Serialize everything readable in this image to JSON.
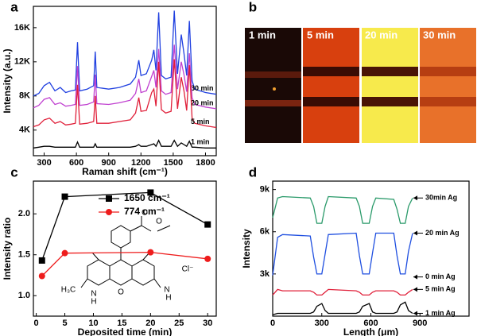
{
  "chart_data": [
    {
      "type": "line",
      "title": "a",
      "x_label": "Raman shift (cm⁻¹)",
      "y_label": "Intensity (a.u.)",
      "x": [
        200,
        250,
        300,
        350,
        400,
        450,
        500,
        550,
        590,
        610,
        630,
        700,
        760,
        775,
        790,
        900,
        1000,
        1100,
        1150,
        1180,
        1200,
        1250,
        1300,
        1320,
        1340,
        1365,
        1390,
        1430,
        1480,
        1510,
        1540,
        1575,
        1600,
        1625,
        1650,
        1675,
        1700,
        1800,
        1900
      ],
      "series": [
        {
          "name": "30 min",
          "color": "#2040e0",
          "values": [
            8000,
            8300,
            9200,
            9600,
            8600,
            9000,
            8400,
            8600,
            8700,
            14300,
            8600,
            8800,
            9200,
            13200,
            9000,
            8800,
            9000,
            9400,
            10200,
            12200,
            10400,
            10600,
            12200,
            13400,
            11000,
            17800,
            10400,
            10000,
            10200,
            18000,
            10600,
            15200,
            13000,
            10400,
            16800,
            9800,
            8800,
            8400,
            8200
          ]
        },
        {
          "name": "20 min",
          "color": "#c040d0",
          "values": [
            6600,
            6900,
            7600,
            7800,
            7000,
            7200,
            6800,
            6900,
            7000,
            11500,
            6900,
            7000,
            7300,
            10500,
            7100,
            7000,
            7200,
            7500,
            8300,
            10000,
            8400,
            8600,
            10300,
            11000,
            9000,
            13500,
            8600,
            8200,
            8400,
            14000,
            8800,
            12000,
            10500,
            8500,
            13000,
            7800,
            7000,
            6700,
            6500
          ]
        },
        {
          "name": "5 min",
          "color": "#e0203a",
          "values": [
            4400,
            4600,
            5200,
            5400,
            4800,
            5000,
            4600,
            4700,
            4800,
            9300,
            4700,
            4800,
            5000,
            8000,
            4800,
            4800,
            5000,
            5200,
            6000,
            7800,
            6200,
            6300,
            8400,
            8800,
            6800,
            12000,
            6400,
            6000,
            6200,
            12300,
            6500,
            10200,
            8600,
            6300,
            11600,
            5400,
            4800,
            4500,
            4300
          ]
        },
        {
          "name": "1 min",
          "color": "#000000",
          "values": [
            1900,
            2000,
            2100,
            2100,
            2000,
            2000,
            2000,
            2000,
            2000,
            2600,
            2000,
            2000,
            2000,
            2400,
            2000,
            2000,
            2000,
            2000,
            2100,
            2300,
            2100,
            2100,
            2300,
            2400,
            2100,
            2800,
            2100,
            2100,
            2100,
            2800,
            2100,
            2500,
            2300,
            2100,
            2700,
            2000,
            2000,
            1900,
            1900
          ]
        }
      ],
      "xlim": [
        200,
        1900
      ],
      "xticks": [
        300,
        600,
        900,
        1200,
        1500,
        1800
      ],
      "ylim": [
        1000,
        18500
      ],
      "yticks": [
        {
          "value": 4000,
          "label": "4K"
        },
        {
          "value": 8000,
          "label": "8K"
        },
        {
          "value": 12000,
          "label": "12K"
        },
        {
          "value": 16000,
          "label": "16K"
        }
      ]
    },
    {
      "type": "image",
      "title": "b",
      "labels": [
        "1 min",
        "5 min",
        "20 min",
        "30 min"
      ]
    },
    {
      "type": "line",
      "title": "c",
      "x_label": "Deposited time (min)",
      "y_label": "Intensity ratio",
      "legend": "upper right",
      "x": [
        1,
        5,
        20,
        30
      ],
      "series": [
        {
          "name": "1650 cm⁻¹",
          "color": "#000000",
          "marker": "square",
          "values": [
            1.43,
            2.21,
            2.26,
            1.87
          ]
        },
        {
          "name": "774 cm⁻¹",
          "color": "#ee1c1c",
          "marker": "circle",
          "values": [
            1.24,
            1.52,
            1.53,
            1.45
          ]
        }
      ],
      "xlim": [
        -0.5,
        31.5
      ],
      "xticks": [
        0,
        5,
        10,
        15,
        20,
        25,
        30
      ],
      "ylim": [
        0.75,
        2.4
      ],
      "yticks": [
        {
          "value": 1,
          "label": "1.0"
        },
        1.5,
        {
          "value": 2,
          "label": "2.0"
        }
      ],
      "annotations": [
        "O",
        "O",
        "H₃C",
        "N",
        "H",
        "O",
        "N",
        "H",
        "Cl⁻"
      ]
    },
    {
      "type": "line",
      "title": "d",
      "x_label": "Length (μm)",
      "y_label": "Intensity",
      "x": [
        0,
        30,
        60,
        230,
        250,
        270,
        300,
        320,
        340,
        510,
        530,
        550,
        590,
        610,
        630,
        740,
        760,
        780,
        810,
        830,
        855
      ],
      "series": [
        {
          "name": "30min Ag",
          "color": "#2a9a6a",
          "values": [
            7000,
            8400,
            8500,
            8400,
            7800,
            6600,
            6600,
            7800,
            8500,
            8400,
            7800,
            6600,
            6600,
            7800,
            8400,
            8300,
            7600,
            6600,
            6600,
            7800,
            8400
          ]
        },
        {
          "name": "20 min Ag",
          "color": "#1f4fe0",
          "values": [
            2900,
            5600,
            5800,
            5700,
            4200,
            3000,
            3000,
            4400,
            5800,
            5900,
            4300,
            3000,
            3000,
            4500,
            5900,
            5900,
            4300,
            3000,
            3000,
            4600,
            5900
          ]
        },
        {
          "name": "5 min Ag",
          "color": "#e0203a",
          "values": [
            1500,
            1900,
            1800,
            1800,
            1700,
            1500,
            1500,
            1700,
            1900,
            1800,
            1700,
            1500,
            1500,
            1700,
            1800,
            1800,
            1700,
            1500,
            1500,
            1700,
            1900
          ]
        },
        {
          "name": "1 min Ag",
          "color": "#000000",
          "values": [
            100,
            200,
            200,
            200,
            300,
            700,
            900,
            400,
            200,
            200,
            300,
            700,
            900,
            300,
            200,
            200,
            300,
            800,
            1000,
            400,
            200
          ]
        }
      ],
      "annotations": [
        "0 min Ag"
      ],
      "xlim": [
        0,
        1200
      ],
      "xticks": [
        0,
        300,
        600,
        900
      ],
      "ylim": [
        0,
        9600
      ],
      "yticks": [
        {
          "value": 3000,
          "label": "3k"
        },
        {
          "value": 6000,
          "label": "6k"
        },
        {
          "value": 9000,
          "label": "9k"
        }
      ]
    }
  ]
}
